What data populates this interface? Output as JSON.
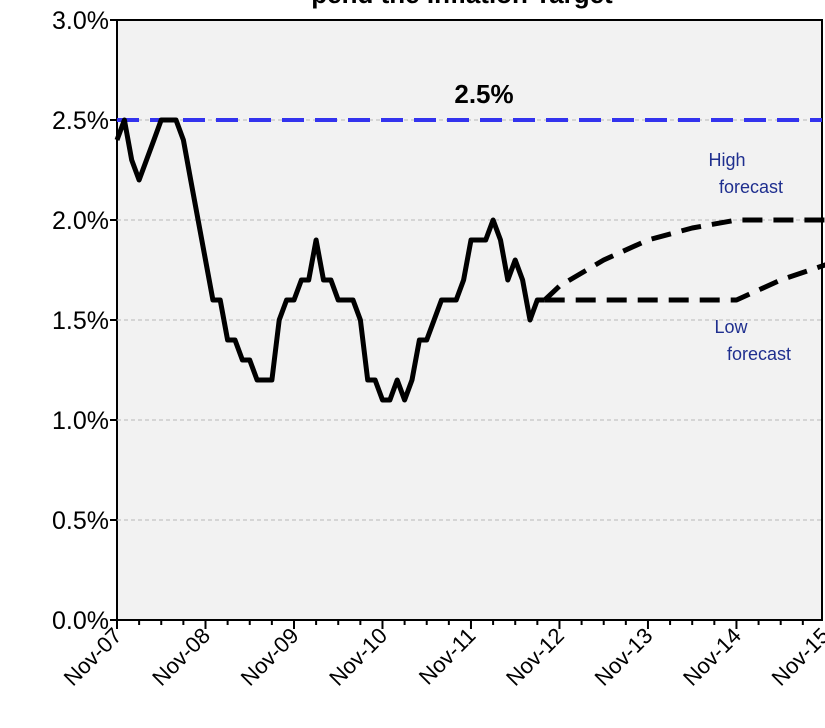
{
  "chart_data": {
    "type": "line",
    "title": "pend the Inflation Target",
    "xlabel": "",
    "ylabel": "",
    "x_tick_labels": [
      "Nov-07",
      "Nov-08",
      "Nov-09",
      "Nov-10",
      "Nov-11",
      "Nov-12",
      "Nov-13",
      "Nov-14",
      "Nov-15"
    ],
    "x_range_months": [
      0,
      96
    ],
    "ylim": [
      0.0,
      3.0
    ],
    "y_tick_labels": [
      "0.0%",
      "0.5%",
      "1.0%",
      "1.5%",
      "2.0%",
      "2.5%",
      "3.0%"
    ],
    "y_ticks": [
      0.0,
      0.5,
      1.0,
      1.5,
      2.0,
      2.5,
      3.0
    ],
    "grid": true,
    "plot_background": "#f2f2f2",
    "series": [
      {
        "style": "solid",
        "color": "#000000",
        "points": [
          [
            "Nov-07",
            2.4
          ],
          [
            "Dec-07",
            2.5
          ],
          [
            "Jan-08",
            2.3
          ],
          [
            "Feb-08",
            2.2
          ],
          [
            "Mar-08",
            2.3
          ],
          [
            "Apr-08",
            2.4
          ],
          [
            "May-08",
            2.5
          ],
          [
            "Jun-08",
            2.5
          ],
          [
            "Jul-08",
            2.5
          ],
          [
            "Aug-08",
            2.4
          ],
          [
            "Sep-08",
            2.2
          ],
          [
            "Oct-08",
            2.0
          ],
          [
            "Nov-08",
            1.8
          ],
          [
            "Dec-08",
            1.6
          ],
          [
            "Jan-09",
            1.6
          ],
          [
            "Feb-09",
            1.4
          ],
          [
            "Mar-09",
            1.4
          ],
          [
            "Apr-09",
            1.3
          ],
          [
            "May-09",
            1.3
          ],
          [
            "Jun-09",
            1.2
          ],
          [
            "Jul-09",
            1.2
          ],
          [
            "Aug-09",
            1.2
          ],
          [
            "Sep-09",
            1.5
          ],
          [
            "Oct-09",
            1.6
          ],
          [
            "Nov-09",
            1.6
          ],
          [
            "Dec-09",
            1.7
          ],
          [
            "Jan-10",
            1.7
          ],
          [
            "Feb-10",
            1.9
          ],
          [
            "Mar-10",
            1.7
          ],
          [
            "Apr-10",
            1.7
          ],
          [
            "May-10",
            1.6
          ],
          [
            "Jun-10",
            1.6
          ],
          [
            "Jul-10",
            1.6
          ],
          [
            "Aug-10",
            1.5
          ],
          [
            "Sep-10",
            1.2
          ],
          [
            "Oct-10",
            1.2
          ],
          [
            "Nov-10",
            1.1
          ],
          [
            "Dec-10",
            1.1
          ],
          [
            "Jan-11",
            1.2
          ],
          [
            "Feb-11",
            1.1
          ],
          [
            "Mar-11",
            1.2
          ],
          [
            "Apr-11",
            1.4
          ],
          [
            "May-11",
            1.4
          ],
          [
            "Jun-11",
            1.5
          ],
          [
            "Jul-11",
            1.6
          ],
          [
            "Aug-11",
            1.6
          ],
          [
            "Sep-11",
            1.6
          ],
          [
            "Oct-11",
            1.7
          ],
          [
            "Nov-11",
            1.9
          ],
          [
            "Dec-11",
            1.9
          ],
          [
            "Jan-12",
            1.9
          ],
          [
            "Feb-12",
            2.0
          ],
          [
            "Mar-12",
            1.9
          ],
          [
            "Apr-12",
            1.7
          ],
          [
            "May-12",
            1.8
          ],
          [
            "Jun-12",
            1.7
          ],
          [
            "Jul-12",
            1.5
          ],
          [
            "Aug-12",
            1.6
          ],
          [
            "Sep-12",
            1.6
          ]
        ]
      },
      {
        "name": "High forecast",
        "style": "dashed",
        "color": "#000000",
        "points": [
          [
            "Sep-12",
            1.6
          ],
          [
            "Nov-12",
            1.67
          ],
          [
            "May-13",
            1.8
          ],
          [
            "Nov-13",
            1.9
          ],
          [
            "May-14",
            1.96
          ],
          [
            "Nov-14",
            2.0
          ],
          [
            "May-15",
            2.0
          ],
          [
            "Nov-15",
            2.0
          ]
        ]
      },
      {
        "name": "Low forecast",
        "style": "dashed",
        "color": "#000000",
        "points": [
          [
            "Sep-12",
            1.6
          ],
          [
            "Nov-12",
            1.6
          ],
          [
            "Nov-13",
            1.6
          ],
          [
            "Nov-14",
            1.6
          ],
          [
            "May-15",
            1.7
          ],
          [
            "Jan-16",
            1.8
          ]
        ]
      }
    ],
    "reference_line": {
      "value": 2.5,
      "label": "2.5%",
      "style": "dashed",
      "color": "#3333ee"
    },
    "annotations": [
      {
        "line1": "High",
        "line2": "forecast",
        "color": "#1f2f8f"
      },
      {
        "line1": "Low",
        "line2": "forecast",
        "color": "#1f2f8f"
      }
    ]
  }
}
